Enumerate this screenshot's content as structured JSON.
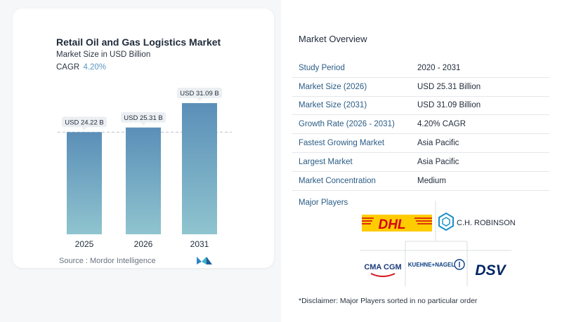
{
  "chart": {
    "title": "Retail Oil and Gas Logistics Market",
    "subtitle": "Market Size in USD Billion",
    "cagr_label": "CAGR",
    "cagr_value": "4.20%",
    "source": "Source :  Mordor Intelligence"
  },
  "chart_data": {
    "type": "bar",
    "title": "Retail Oil and Gas Logistics Market",
    "subtitle": "Market Size in USD Billion",
    "categories": [
      "2025",
      "2026",
      "2031"
    ],
    "values": [
      24.22,
      25.31,
      31.09
    ],
    "data_labels": [
      "USD 24.22 B",
      "USD 25.31 B",
      "USD 31.09 B"
    ],
    "xlabel": "",
    "ylabel": "",
    "ylim": [
      0,
      31.09
    ],
    "reference_line": 24.22,
    "grid": false,
    "colors": {
      "bar_top": "#5b8fb8",
      "bar_bottom": "#8fc4cf"
    }
  },
  "overview": {
    "title": "Market Overview",
    "rows": [
      {
        "key": "Study Period",
        "value": "2020 - 2031"
      },
      {
        "key": "Market Size (2026)",
        "value": "USD 25.31 Billion"
      },
      {
        "key": "Market Size (2031)",
        "value": "USD 31.09 Billion"
      },
      {
        "key": "Growth Rate (2026 - 2031)",
        "value": "4.20% CAGR"
      },
      {
        "key": "Fastest Growing Market",
        "value": "Asia Pacific"
      },
      {
        "key": "Largest Market",
        "value": "Asia Pacific"
      },
      {
        "key": "Market Concentration",
        "value": "Medium"
      }
    ],
    "players_label": "Major Players",
    "players": [
      {
        "name": "DHL",
        "icon": "dhl-logo"
      },
      {
        "name": "C.H. ROBINSON",
        "icon": "ch-robinson-logo"
      },
      {
        "name": "CMA CGM",
        "icon": "cma-cgm-logo"
      },
      {
        "name": "KUEHNE+NAGEL",
        "icon": "kuehne-nagel-logo"
      },
      {
        "name": "DSV",
        "icon": "dsv-logo"
      }
    ],
    "disclaimer": "*Disclaimer: Major Players sorted in no particular order"
  }
}
